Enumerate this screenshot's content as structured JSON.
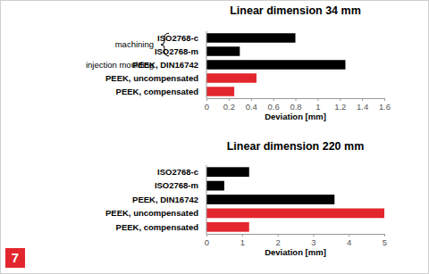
{
  "chart_data": [
    {
      "type": "bar",
      "orientation": "horizontal",
      "title": "Linear dimension 34 mm",
      "categories": [
        "ISO2768-c",
        "ISO2768-m",
        "PEEK, DIN16742",
        "PEEK, uncompensated",
        "PEEK, compensated"
      ],
      "values": [
        0.8,
        0.3,
        1.25,
        0.45,
        0.25
      ],
      "colors": [
        "#000000",
        "#000000",
        "#000000",
        "#e3262d",
        "#e3262d"
      ],
      "x_label": "Deviation [mm]",
      "xlim": [
        0,
        1.6
      ],
      "xticks": [
        0,
        0.2,
        0.4,
        0.6,
        0.8,
        1,
        1.2,
        1.4,
        1.6
      ],
      "annotations": [
        "machining",
        "injection moulding"
      ]
    },
    {
      "type": "bar",
      "orientation": "horizontal",
      "title": "Linear dimension 220 mm",
      "categories": [
        "ISO2768-c",
        "ISO2768-m",
        "PEEK, DIN16742",
        "PEEK, uncompensated",
        "PEEK, compensated"
      ],
      "values": [
        1.2,
        0.5,
        3.6,
        5,
        1.2
      ],
      "colors": [
        "#000000",
        "#000000",
        "#000000",
        "#e3262d",
        "#e3262d"
      ],
      "x_label": "Deviation [mm]",
      "xlim": [
        0,
        5
      ],
      "xticks": [
        0,
        1,
        2,
        3,
        4,
        5
      ]
    }
  ],
  "figure_label": "7"
}
